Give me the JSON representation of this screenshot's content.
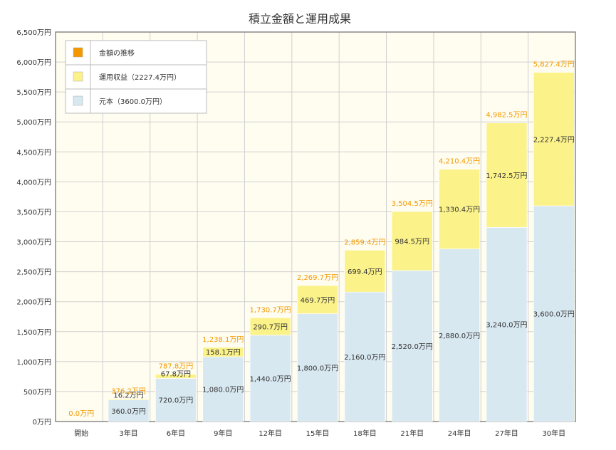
{
  "chart_data": {
    "type": "bar",
    "stacked": true,
    "title": "積立金額と運用成果",
    "categories": [
      "開始",
      "3年目",
      "6年目",
      "9年目",
      "12年目",
      "15年目",
      "18年目",
      "21年目",
      "24年目",
      "27年目",
      "30年目"
    ],
    "series": [
      {
        "name": "元本（3600.0万円）",
        "color": "#d8e8f1",
        "values": [
          0.0,
          360.0,
          720.0,
          1080.0,
          1440.0,
          1800.0,
          2160.0,
          2520.0,
          2880.0,
          3240.0,
          3600.0
        ],
        "labels": [
          "",
          "360.0万円",
          "720.0万円",
          "1,080.0万円",
          "1,440.0万円",
          "1,800.0万円",
          "2,160.0万円",
          "2,520.0万円",
          "2,880.0万円",
          "3,240.0万円",
          "3,600.0万円"
        ]
      },
      {
        "name": "運用収益（2227.4万円）",
        "color": "#fbf28a",
        "values": [
          0.0,
          16.2,
          67.8,
          158.1,
          290.7,
          469.7,
          699.4,
          984.5,
          1330.4,
          1742.5,
          2227.4
        ],
        "labels": [
          "",
          "16.2万円",
          "67.8万円",
          "158.1万円",
          "290.7万円",
          "469.7万円",
          "699.4万円",
          "984.5万円",
          "1,330.4万円",
          "1,742.5万円",
          "2,227.4万円"
        ]
      }
    ],
    "totals": {
      "name": "金額の推移",
      "color": "#f39800",
      "values": [
        0.0,
        376.2,
        787.8,
        1238.1,
        1730.7,
        2269.7,
        2859.4,
        3504.5,
        4210.4,
        4982.5,
        5827.4
      ],
      "labels": [
        "0.0万円",
        "376.2万円",
        "787.8万円",
        "1,238.1万円",
        "1,730.7万円",
        "2,269.7万円",
        "2,859.4万円",
        "3,504.5万円",
        "4,210.4万円",
        "4,982.5万円",
        "5,827.4万円"
      ]
    },
    "ylim": [
      0,
      6500
    ],
    "yticks": [
      0,
      500,
      1000,
      1500,
      2000,
      2500,
      3000,
      3500,
      4000,
      4500,
      5000,
      5500,
      6000,
      6500
    ],
    "ytick_labels": [
      "0万円",
      "500万円",
      "1,000万円",
      "1,500万円",
      "2,000万円",
      "2,500万円",
      "3,000万円",
      "3,500万円",
      "4,000万円",
      "4,500万円",
      "5,000万円",
      "5,500万円",
      "6,000万円",
      "6,500万円"
    ],
    "grid": true,
    "legend": {
      "placement": "top-left",
      "entries": [
        {
          "label": "金額の推移",
          "color": "#f39800"
        },
        {
          "label": "運用収益（2227.4万円）",
          "color": "#fbf28a"
        },
        {
          "label": "元本（3600.0万円）",
          "color": "#d8e8f1"
        }
      ]
    },
    "colors": {
      "plot_background": "#fffdf0",
      "grid": "#d0d0d0",
      "axis": "#888888",
      "text": "#333333",
      "total_label": "#f39800"
    }
  }
}
